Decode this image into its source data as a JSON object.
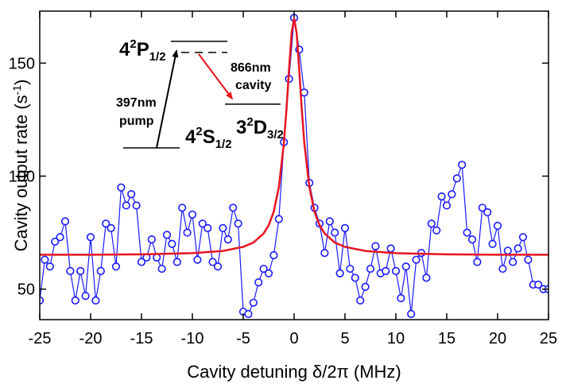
{
  "chart_data": {
    "type": "line",
    "x_label": "Cavity detuning δ/2π (MHz)",
    "y_label": {
      "text": "Cavity output rate (s",
      "sup": "-1",
      "end": ")"
    },
    "xlim": [
      -25,
      25
    ],
    "xticks": [
      -25,
      -20,
      -15,
      -10,
      -5,
      0,
      5,
      10,
      15,
      20,
      25
    ],
    "ylim": [
      36.5,
      173
    ],
    "yticks": [
      50,
      100,
      150
    ],
    "series": [
      {
        "color": "#1a1aff",
        "markers": true,
        "x": [
          -25,
          -24.5,
          -24,
          -23.5,
          -23,
          -22.5,
          -22,
          -21.5,
          -21,
          -20.5,
          -20,
          -19.5,
          -19,
          -18.5,
          -18,
          -17.5,
          -17,
          -16.5,
          -16,
          -15.5,
          -15,
          -14.5,
          -14,
          -13.5,
          -13,
          -12.5,
          -12,
          -11.5,
          -11,
          -10.5,
          -10,
          -9.5,
          -9,
          -8.5,
          -8,
          -7.5,
          -7,
          -6.5,
          -6,
          -5.5,
          -5,
          -4.5,
          -4,
          -3.5,
          -3,
          -2.5,
          -2,
          -1.5,
          -1,
          -0.5,
          0,
          0.5,
          1,
          1.5,
          2,
          2.5,
          3,
          3.5,
          4,
          4.5,
          5,
          5.5,
          6,
          6.5,
          7,
          7.5,
          8,
          8.5,
          9,
          9.5,
          10,
          10.5,
          11,
          11.5,
          12,
          12.5,
          13,
          13.5,
          14,
          14.5,
          15,
          15.5,
          16,
          16.5,
          17,
          17.5,
          18,
          18.5,
          19,
          19.5,
          20,
          20.5,
          21,
          21.5,
          22,
          22.5,
          23,
          23.5,
          24,
          24.5,
          25
        ],
        "values": [
          45,
          63,
          60,
          71,
          73,
          80,
          58,
          45,
          58,
          47,
          73,
          45,
          58,
          79,
          77,
          60,
          95,
          87,
          92,
          87,
          62,
          64,
          72,
          64,
          59,
          74,
          70,
          62,
          86,
          75,
          83,
          63,
          79,
          77,
          62,
          60,
          77,
          72,
          86,
          79,
          40,
          39,
          44,
          53,
          59,
          57,
          65,
          81,
          115,
          143,
          170,
          156,
          137,
          97,
          86,
          79,
          66,
          80,
          75,
          57,
          77,
          59,
          55,
          45,
          51,
          59,
          69,
          57,
          58,
          68,
          58,
          46,
          60,
          39,
          63,
          66,
          55,
          79,
          76,
          91,
          87,
          92,
          99,
          105,
          75,
          72,
          62,
          86,
          84,
          70,
          78,
          59,
          67,
          62,
          68,
          73,
          63,
          52,
          52,
          50,
          50
        ]
      },
      {
        "color": "#e8141e",
        "markers": false,
        "x": [
          -25,
          -20,
          -15,
          -10,
          -7,
          -5,
          -4,
          -3,
          -2.5,
          -2,
          -1.5,
          -1,
          -0.75,
          -0.5,
          -0.25,
          0,
          0.25,
          0.5,
          0.75,
          1,
          1.5,
          2,
          2.5,
          3,
          4,
          5,
          7,
          10,
          15,
          20,
          25
        ],
        "values": [
          65.2,
          65.2,
          65.4,
          65.9,
          66.9,
          68.7,
          70.6,
          74.6,
          78.3,
          84.3,
          95.1,
          114.8,
          129.7,
          147.2,
          163.2,
          170,
          163.2,
          147.2,
          129.7,
          114.8,
          95.1,
          84.3,
          78.3,
          74.6,
          70.6,
          68.7,
          66.9,
          65.9,
          65.4,
          65.2,
          65.2
        ]
      }
    ],
    "annotations": {
      "levels": [
        {
          "n": "4",
          "sup": "2",
          "l": "P",
          "sub": "1/2"
        },
        {
          "n": "4",
          "sup": "2",
          "l": "S",
          "sub": "1/2"
        },
        {
          "n": "3",
          "sup": "2",
          "l": "D",
          "sub": "3/2"
        }
      ],
      "cavity": [
        "866nm",
        "cavity"
      ],
      "pump": [
        "397nm",
        "pump"
      ]
    }
  }
}
